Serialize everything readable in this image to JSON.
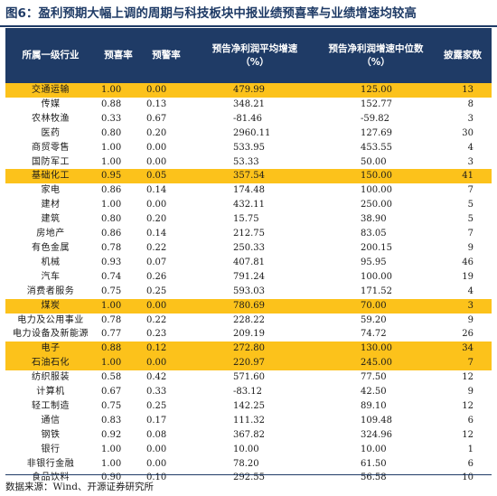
{
  "title": "图6：盈利预期大幅上调的周期与科技板块中报业绩预喜率与业绩增速均较高",
  "headers": {
    "industry": "所属一级行业",
    "positive_rate": "预喜率",
    "warning_rate": "预警率",
    "avg_growth_line1": "预告净利润平均增速",
    "avg_growth_line2": "（%）",
    "median_growth_line1": "预告净利润增速中位数",
    "median_growth_line2": "（%）",
    "disclosed_count": "披露家数"
  },
  "highlight_color": "#fcc21b",
  "header_color": "#1f3b66",
  "rows": [
    {
      "industry": "交通运输",
      "positive_rate": "1.00",
      "warning_rate": "0.00",
      "avg_growth": "479.99",
      "median_growth": "125.00",
      "count": "13",
      "highlight": true
    },
    {
      "industry": "传媒",
      "positive_rate": "0.88",
      "warning_rate": "0.13",
      "avg_growth": "348.21",
      "median_growth": "152.77",
      "count": "8",
      "highlight": false
    },
    {
      "industry": "农林牧渔",
      "positive_rate": "0.33",
      "warning_rate": "0.67",
      "avg_growth": "-81.46",
      "median_growth": "-59.82",
      "count": "3",
      "highlight": false
    },
    {
      "industry": "医药",
      "positive_rate": "0.80",
      "warning_rate": "0.20",
      "avg_growth": "2960.11",
      "median_growth": "127.69",
      "count": "30",
      "highlight": false
    },
    {
      "industry": "商贸零售",
      "positive_rate": "1.00",
      "warning_rate": "0.00",
      "avg_growth": "533.95",
      "median_growth": "453.55",
      "count": "4",
      "highlight": false
    },
    {
      "industry": "国防军工",
      "positive_rate": "1.00",
      "warning_rate": "0.00",
      "avg_growth": "53.33",
      "median_growth": "50.00",
      "count": "3",
      "highlight": false
    },
    {
      "industry": "基础化工",
      "positive_rate": "0.95",
      "warning_rate": "0.05",
      "avg_growth": "357.54",
      "median_growth": "150.00",
      "count": "41",
      "highlight": true
    },
    {
      "industry": "家电",
      "positive_rate": "0.86",
      "warning_rate": "0.14",
      "avg_growth": "174.48",
      "median_growth": "100.00",
      "count": "7",
      "highlight": false
    },
    {
      "industry": "建材",
      "positive_rate": "1.00",
      "warning_rate": "0.00",
      "avg_growth": "432.11",
      "median_growth": "250.00",
      "count": "5",
      "highlight": false
    },
    {
      "industry": "建筑",
      "positive_rate": "0.80",
      "warning_rate": "0.20",
      "avg_growth": "15.75",
      "median_growth": "38.90",
      "count": "5",
      "highlight": false
    },
    {
      "industry": "房地产",
      "positive_rate": "0.86",
      "warning_rate": "0.14",
      "avg_growth": "212.75",
      "median_growth": "83.05",
      "count": "7",
      "highlight": false
    },
    {
      "industry": "有色金属",
      "positive_rate": "0.78",
      "warning_rate": "0.22",
      "avg_growth": "250.33",
      "median_growth": "200.15",
      "count": "9",
      "highlight": false
    },
    {
      "industry": "机械",
      "positive_rate": "0.93",
      "warning_rate": "0.07",
      "avg_growth": "407.81",
      "median_growth": "95.95",
      "count": "46",
      "highlight": false
    },
    {
      "industry": "汽车",
      "positive_rate": "0.74",
      "warning_rate": "0.26",
      "avg_growth": "791.24",
      "median_growth": "100.00",
      "count": "19",
      "highlight": false
    },
    {
      "industry": "消费者服务",
      "positive_rate": "0.75",
      "warning_rate": "0.25",
      "avg_growth": "593.03",
      "median_growth": "171.52",
      "count": "4",
      "highlight": false
    },
    {
      "industry": "煤炭",
      "positive_rate": "1.00",
      "warning_rate": "0.00",
      "avg_growth": "780.69",
      "median_growth": "70.00",
      "count": "3",
      "highlight": true
    },
    {
      "industry": "电力及公用事业",
      "positive_rate": "0.78",
      "warning_rate": "0.22",
      "avg_growth": "228.22",
      "median_growth": "59.20",
      "count": "9",
      "highlight": false
    },
    {
      "industry": "电力设备及新能源",
      "positive_rate": "0.77",
      "warning_rate": "0.23",
      "avg_growth": "209.19",
      "median_growth": "74.72",
      "count": "26",
      "highlight": false
    },
    {
      "industry": "电子",
      "positive_rate": "0.88",
      "warning_rate": "0.12",
      "avg_growth": "272.80",
      "median_growth": "130.00",
      "count": "34",
      "highlight": true
    },
    {
      "industry": "石油石化",
      "positive_rate": "1.00",
      "warning_rate": "0.00",
      "avg_growth": "220.97",
      "median_growth": "245.00",
      "count": "7",
      "highlight": true
    },
    {
      "industry": "纺织服装",
      "positive_rate": "0.58",
      "warning_rate": "0.42",
      "avg_growth": "571.60",
      "median_growth": "77.50",
      "count": "12",
      "highlight": false
    },
    {
      "industry": "计算机",
      "positive_rate": "0.67",
      "warning_rate": "0.33",
      "avg_growth": "-83.12",
      "median_growth": "42.50",
      "count": "9",
      "highlight": false
    },
    {
      "industry": "轻工制造",
      "positive_rate": "0.75",
      "warning_rate": "0.25",
      "avg_growth": "142.25",
      "median_growth": "89.10",
      "count": "12",
      "highlight": false
    },
    {
      "industry": "通信",
      "positive_rate": "0.83",
      "warning_rate": "0.17",
      "avg_growth": "111.32",
      "median_growth": "109.48",
      "count": "6",
      "highlight": false
    },
    {
      "industry": "钢铁",
      "positive_rate": "0.92",
      "warning_rate": "0.08",
      "avg_growth": "367.82",
      "median_growth": "324.96",
      "count": "12",
      "highlight": false
    },
    {
      "industry": "银行",
      "positive_rate": "1.00",
      "warning_rate": "0.00",
      "avg_growth": "10.00",
      "median_growth": "10.00",
      "count": "1",
      "highlight": false
    },
    {
      "industry": "非银行金融",
      "positive_rate": "1.00",
      "warning_rate": "0.00",
      "avg_growth": "78.20",
      "median_growth": "61.50",
      "count": "6",
      "highlight": false
    },
    {
      "industry": "食品饮料",
      "positive_rate": "0.90",
      "warning_rate": "0.10",
      "avg_growth": "292.55",
      "median_growth": "56.58",
      "count": "10",
      "highlight": false
    }
  ],
  "source": "数据来源：Wind、开源证券研究所"
}
